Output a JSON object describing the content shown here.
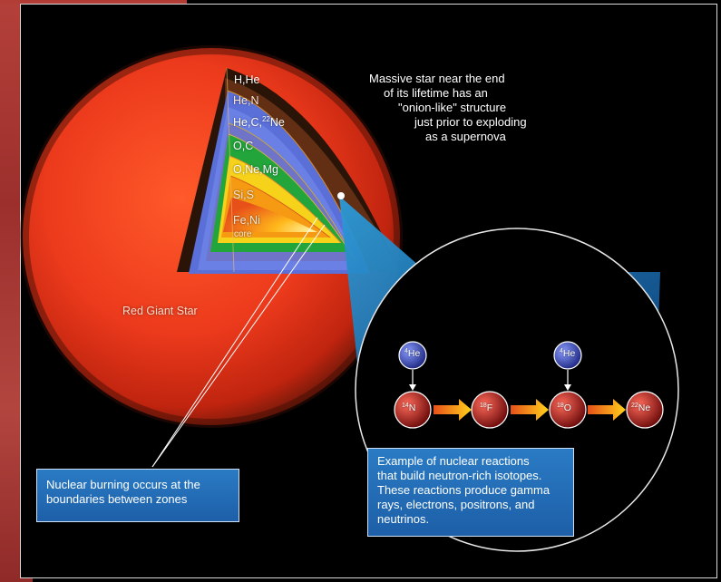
{
  "zones": [
    {
      "id": "h-he",
      "label": "H,He"
    },
    {
      "id": "he-n",
      "label": "He,N"
    },
    {
      "id": "he-c-ne",
      "label_main": "He,C,",
      "label_sup": "22",
      "label_tail": "Ne"
    },
    {
      "id": "o-c",
      "label": "O,C"
    },
    {
      "id": "o-ne-mg",
      "label": "O,Ne,Mg"
    },
    {
      "id": "si-s",
      "label": "Si,S"
    },
    {
      "id": "fe-ni",
      "label": "Fe,Ni",
      "sublabel": "core"
    }
  ],
  "star_label": "Red Giant Star",
  "description_lines": [
    "Massive star near the end",
    "of its lifetime has an",
    "\"onion-like\" structure",
    "just prior to exploding",
    "as a supernova"
  ],
  "callout_burning": {
    "lines": [
      "Nuclear burning occurs at the",
      "boundaries between zones"
    ]
  },
  "callout_reactions": {
    "lines": [
      "Example of nuclear reactions",
      "that build neutron-rich isotopes.",
      "These reactions produce gamma",
      "rays, electrons, positrons, and",
      "neutrinos."
    ]
  },
  "reaction_chain": {
    "helium_inputs": [
      {
        "mass": "4",
        "symbol": "He"
      },
      {
        "mass": "4",
        "symbol": "He"
      }
    ],
    "nuclei": [
      {
        "mass": "14",
        "symbol": "N"
      },
      {
        "mass": "18",
        "symbol": "F"
      },
      {
        "mass": "18",
        "symbol": "O"
      },
      {
        "mass": "22",
        "symbol": "Ne"
      }
    ]
  },
  "colors": {
    "background": "#000000",
    "star_red": "#e8321c",
    "zone_brown": "#3a1b0c",
    "zone_blue": "#5a6fd8",
    "zone_green": "#22a53a",
    "zone_yellow": "#f6d21a",
    "zone_orange": "#f59a12",
    "callout_blue": "#2a7bc4",
    "nucleus_red": "#b01818",
    "helium_blue": "#2f3fa8",
    "arrow_orange": "#f7a21b"
  }
}
